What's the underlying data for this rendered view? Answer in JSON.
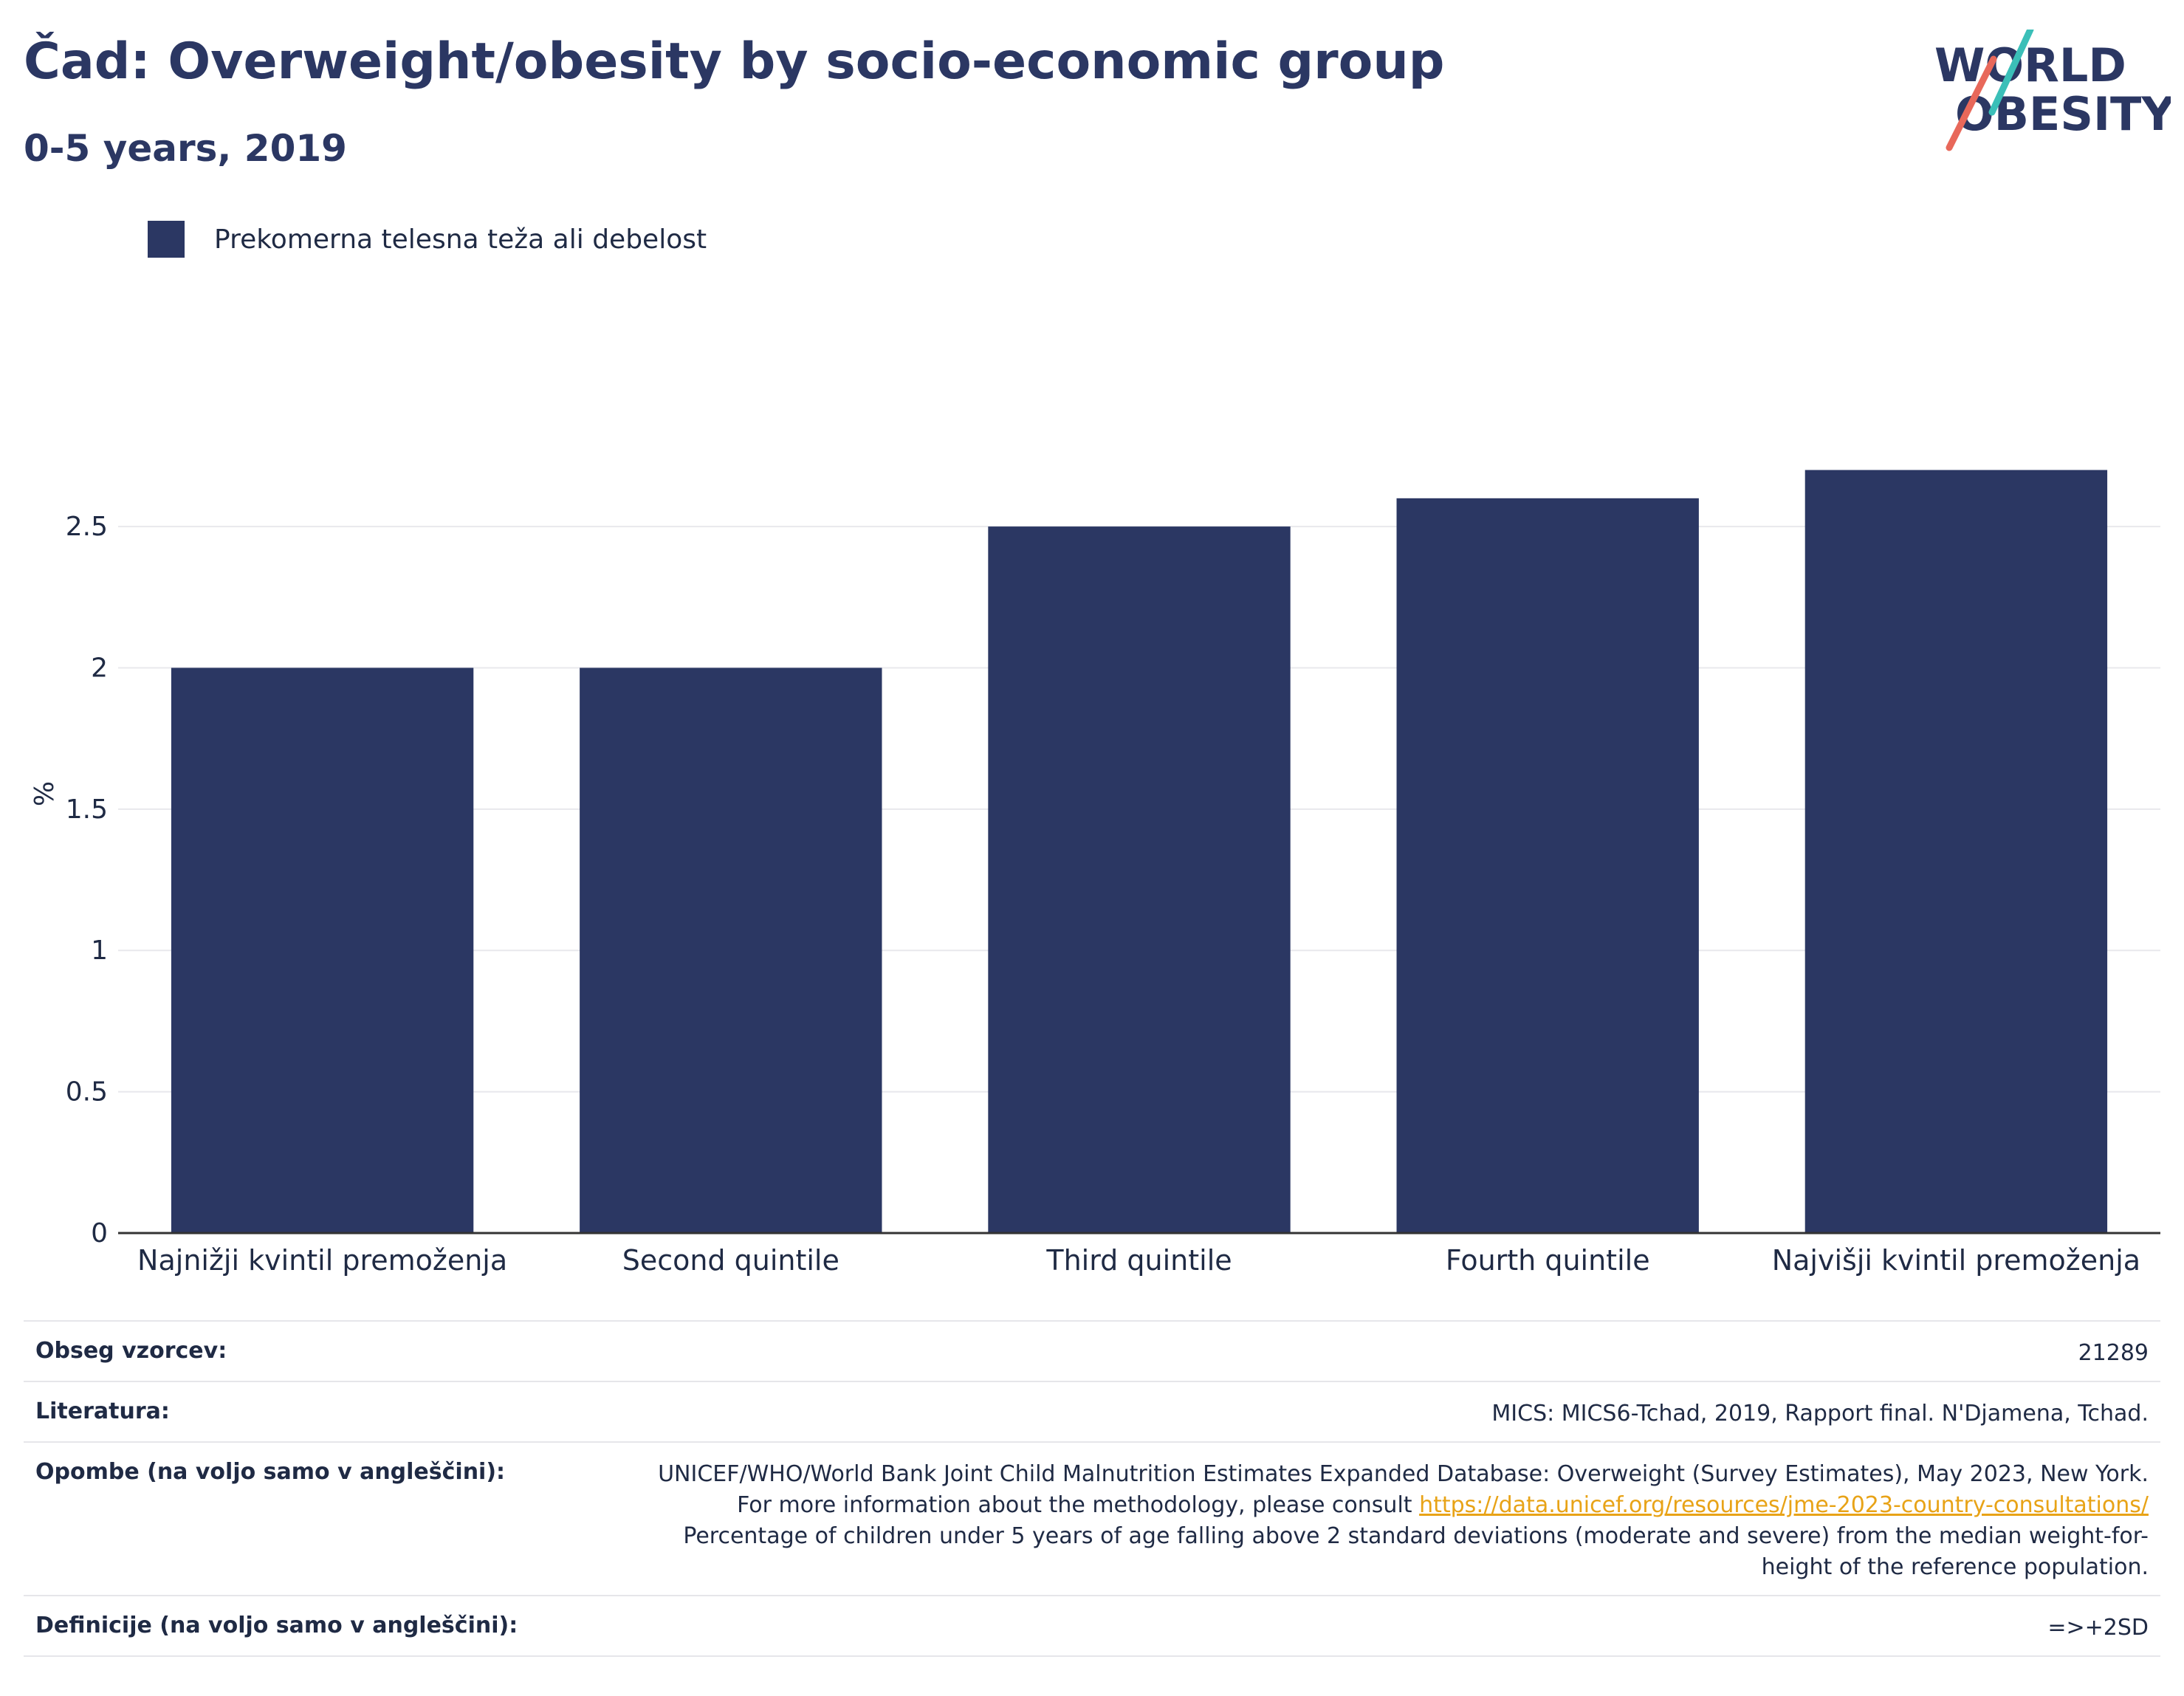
{
  "header": {
    "title": "Čad: Overweight/obesity by socio-economic group",
    "subtitle": "0-5 years, 2019"
  },
  "logo": {
    "line1": "WORLD",
    "line2": "OBESITY",
    "colors": {
      "text": "#2b3763",
      "slash_top": "#3bbfb8",
      "slash_bottom": "#e8685a"
    }
  },
  "colors": {
    "bar": "#2b3763",
    "grid": "#e8e8ec",
    "axis": "#333333",
    "link": "#e8a317"
  },
  "chart_data": {
    "type": "bar",
    "categories": [
      "Najnižji kvintil premoženja",
      "Second quintile",
      "Third quintile",
      "Fourth quintile",
      "Najvišji kvintil premoženja"
    ],
    "series": [
      {
        "name": "Prekomerna telesna teža ali debelost",
        "values": [
          2.0,
          2.0,
          2.5,
          2.6,
          2.7
        ]
      }
    ],
    "ylabel": "%",
    "xlabel": "",
    "ylim": [
      0,
      2.9
    ],
    "yticks": [
      0,
      0.5,
      1,
      1.5,
      2,
      2.5
    ],
    "ytick_labels": [
      "0",
      "0.5",
      "1",
      "1.5",
      "2",
      "2.5"
    ],
    "grid": true,
    "legend_position": "top-left"
  },
  "info": {
    "sample_label": "Obseg vzorcev:",
    "sample_value": "21289",
    "source_label": "Literatura:",
    "source_value": "MICS: MICS6-Tchad, 2019, Rapport final. N'Djamena, Tchad.",
    "notes_label": "Opombe (na voljo samo v angleščini):",
    "notes_text1": "UNICEF/WHO/World Bank Joint Child Malnutrition Estimates Expanded Database: Overweight (Survey Estimates), May 2023, New York. For more information about the methodology, please consult",
    "notes_link": "https://data.unicef.org/resources/jme-2023-country-consultations/",
    "notes_text2": "Percentage of children under 5 years of age falling above 2 standard deviations (moderate and severe) from the median weight-for-height of the reference population.",
    "definition_label": "Definicije (na voljo samo v angleščini):",
    "definition_value": "=>+2SD"
  }
}
